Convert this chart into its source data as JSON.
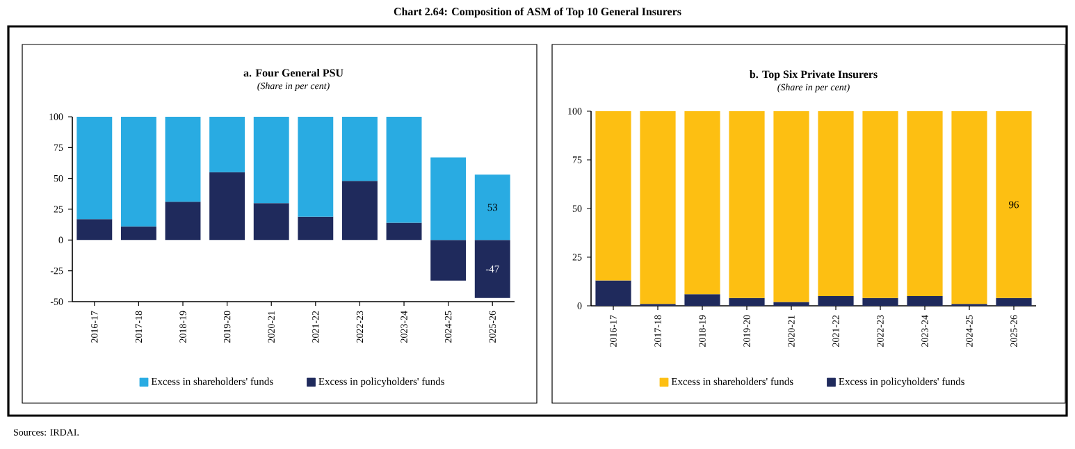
{
  "chart_data": [
    {
      "type": "bar",
      "stacked": true,
      "title": "a. Four General PSU",
      "subtitle": "(Share in per cent)",
      "categories": [
        "2016-17",
        "2017-18",
        "2018-19",
        "2019-20",
        "2020-21",
        "2021-22",
        "2022-23",
        "2023-24",
        "2024-25",
        "2025-26"
      ],
      "series": [
        {
          "name": "Excess in policyholders' funds",
          "color": "#1f2a5c",
          "values": [
            17,
            11,
            31,
            55,
            30,
            19,
            48,
            14,
            -33,
            -47
          ],
          "value_labels": [
            null,
            null,
            null,
            null,
            null,
            null,
            null,
            null,
            null,
            "-47"
          ]
        },
        {
          "name": "Excess in shareholders' funds",
          "color": "#29abe2",
          "values": [
            83,
            89,
            69,
            45,
            70,
            81,
            52,
            86,
            67,
            53
          ],
          "value_labels": [
            null,
            null,
            null,
            null,
            null,
            null,
            null,
            null,
            null,
            "53"
          ]
        }
      ],
      "ylim": [
        -50,
        100
      ],
      "yticks": [
        -50,
        -25,
        0,
        25,
        50,
        75,
        100
      ],
      "legend": "bottom",
      "annotations": [
        "Chart 2.64: Composition of ASM of Top 10 General Insurers",
        "Sources: IRDAI."
      ]
    },
    {
      "type": "bar",
      "stacked": true,
      "title": "b. Top Six Private Insurers",
      "subtitle": "(Share in per cent)",
      "categories": [
        "2016-17",
        "2017-18",
        "2018-19",
        "2019-20",
        "2020-21",
        "2021-22",
        "2022-23",
        "2023-24",
        "2024-25",
        "2025-26"
      ],
      "series": [
        {
          "name": "Excess in policyholders' funds",
          "color": "#1f2a5c",
          "values": [
            13,
            1,
            6,
            4,
            2,
            5,
            4,
            5,
            1,
            4
          ]
        },
        {
          "name": "Excess in shareholders' funds",
          "color": "#fdbf12",
          "values": [
            87,
            99,
            94,
            96,
            98,
            95,
            96,
            95,
            99,
            96
          ],
          "value_labels": [
            null,
            null,
            null,
            null,
            null,
            null,
            null,
            null,
            null,
            "96"
          ]
        }
      ],
      "ylim": [
        0,
        100
      ],
      "yticks": [
        0,
        25,
        50,
        75,
        100
      ],
      "legend": "bottom"
    }
  ]
}
